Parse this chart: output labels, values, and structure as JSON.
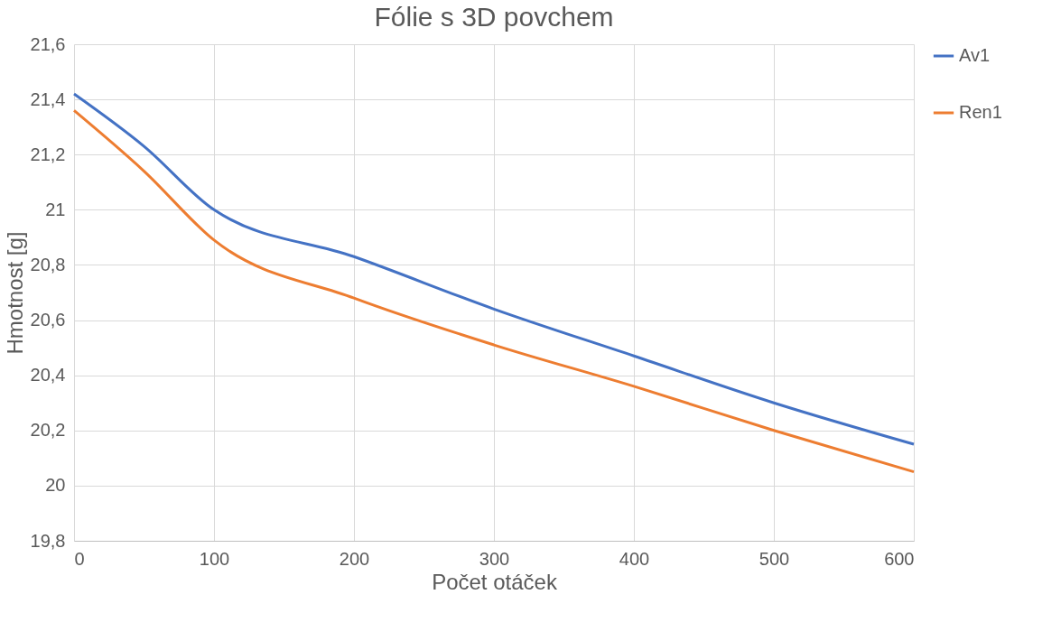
{
  "chart_data": {
    "type": "line",
    "title": "Fólie s 3D povchem",
    "xlabel": "Počet otáček",
    "ylabel": "Hmotnost [g]",
    "x": [
      0,
      50,
      100,
      200,
      300,
      400,
      500,
      600
    ],
    "series": [
      {
        "name": "Av1",
        "color": "#4472c4",
        "values": [
          21.42,
          21.23,
          21.0,
          20.83,
          20.64,
          20.47,
          20.3,
          20.15
        ]
      },
      {
        "name": "Ren1",
        "color": "#ed7d31",
        "values": [
          21.36,
          21.14,
          20.89,
          20.68,
          20.51,
          20.36,
          20.2,
          20.05
        ]
      }
    ],
    "xlim": [
      0,
      600
    ],
    "xticks": [
      0,
      100,
      200,
      300,
      400,
      500,
      600
    ],
    "ylim": [
      19.8,
      21.6
    ],
    "yticks": [
      {
        "value": 19.8,
        "label": "19,8"
      },
      {
        "value": 20,
        "label": "20"
      },
      {
        "value": 20.2,
        "label": "20,2"
      },
      {
        "value": 20.4,
        "label": "20,4"
      },
      {
        "value": 20.6,
        "label": "20,6"
      },
      {
        "value": 20.8,
        "label": "20,8"
      },
      {
        "value": 21,
        "label": "21"
      },
      {
        "value": 21.2,
        "label": "21,2"
      },
      {
        "value": 21.4,
        "label": "21,4"
      },
      {
        "value": 21.6,
        "label": "21,6"
      }
    ],
    "grid": true,
    "legend": "right",
    "marker": "none",
    "line_style": "solid"
  }
}
